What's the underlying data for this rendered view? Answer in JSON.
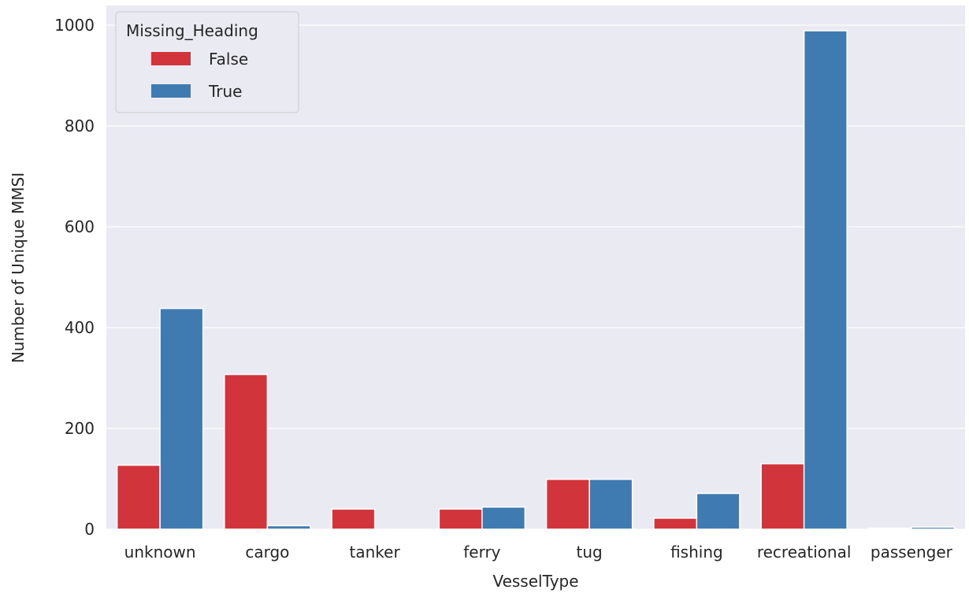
{
  "chart_data": {
    "type": "bar",
    "title": "",
    "xlabel": "VesselType",
    "ylabel": "Number of Unique MMSI",
    "categories": [
      "unknown",
      "cargo",
      "tanker",
      "ferry",
      "tug",
      "fishing",
      "recreational",
      "passenger"
    ],
    "series": [
      {
        "name": "False",
        "color": "#d1343a",
        "values": [
          127,
          307,
          40,
          40,
          99,
          22,
          130,
          2
        ]
      },
      {
        "name": "True",
        "color": "#3f7ab0",
        "values": [
          438,
          7,
          0,
          44,
          99,
          71,
          989,
          4
        ]
      }
    ],
    "ylim": [
      0,
      1000
    ],
    "yticks": [
      0,
      200,
      400,
      600,
      800,
      1000
    ],
    "grid": true,
    "legend": {
      "title": "Missing_Heading",
      "position": "top-left"
    },
    "colors": {
      "background": "#eaeaf2",
      "grid": "#ffffff"
    }
  }
}
